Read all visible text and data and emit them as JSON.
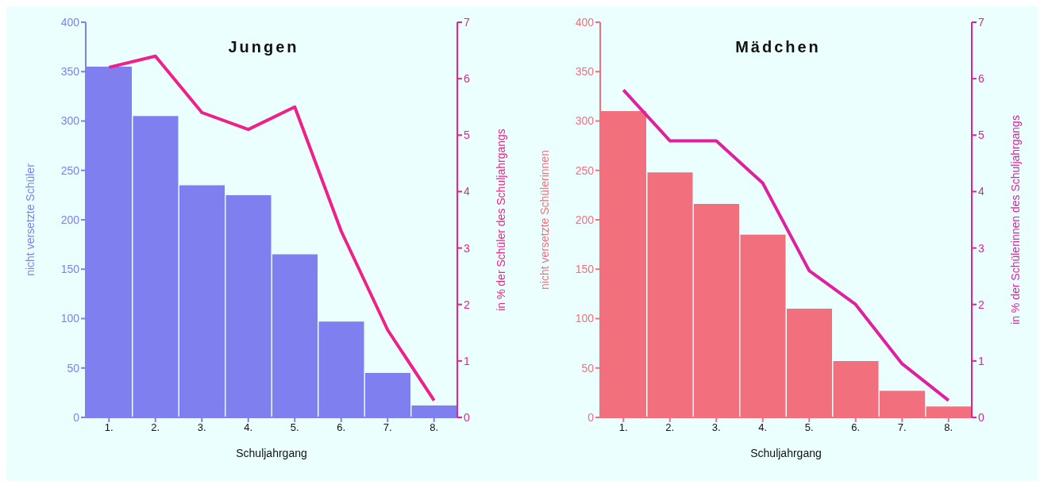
{
  "chart_data": [
    {
      "type": "bar",
      "title": "Jungen",
      "xlabel": "Schuljahrgang",
      "ylabel": "nicht versetzte Schüler",
      "y2label": "in % der Schüler des Schuljahrgangs",
      "categories": [
        "1.",
        "2.",
        "3.",
        "4.",
        "5.",
        "6.",
        "7.",
        "8."
      ],
      "series": [
        {
          "color": "#7f7ff0",
          "values": [
            355,
            305,
            235,
            225,
            165,
            97,
            45,
            12
          ]
        },
        {
          "type": "line",
          "axis": "y2",
          "color": "#f0208a",
          "values": [
            6.2,
            6.4,
            5.4,
            5.1,
            5.5,
            3.3,
            1.55,
            0.3
          ]
        }
      ],
      "ylim": [
        0,
        400
      ],
      "yticks": [
        0,
        50,
        100,
        150,
        200,
        250,
        300,
        350,
        400
      ],
      "y2lim": [
        0,
        7
      ],
      "y2ticks": [
        0,
        1,
        2,
        3,
        4,
        5,
        6,
        7
      ],
      "grid": false,
      "legend": false,
      "marker": "none"
    },
    {
      "type": "bar",
      "title": "Mädchen",
      "xlabel": "Schuljahrgang",
      "ylabel": "nicht versetzte Schülerinnen",
      "y2label": "in % der Schülerinnen des Schuljahrgangs",
      "categories": [
        "1.",
        "2.",
        "3.",
        "4.",
        "5.",
        "6.",
        "7.",
        "8."
      ],
      "series": [
        {
          "color": "#f2707e",
          "values": [
            310,
            248,
            216,
            185,
            110,
            57,
            27,
            11
          ]
        },
        {
          "type": "line",
          "axis": "y2",
          "color": "#e020a0",
          "values": [
            5.8,
            4.9,
            4.9,
            4.15,
            2.6,
            2.0,
            0.95,
            0.3
          ]
        }
      ],
      "ylim": [
        0,
        400
      ],
      "yticks": [
        0,
        50,
        100,
        150,
        200,
        250,
        300,
        350,
        400
      ],
      "y2lim": [
        0,
        7
      ],
      "y2ticks": [
        0,
        1,
        2,
        3,
        4,
        5,
        6,
        7
      ],
      "grid": false,
      "legend": false,
      "marker": "none"
    }
  ]
}
